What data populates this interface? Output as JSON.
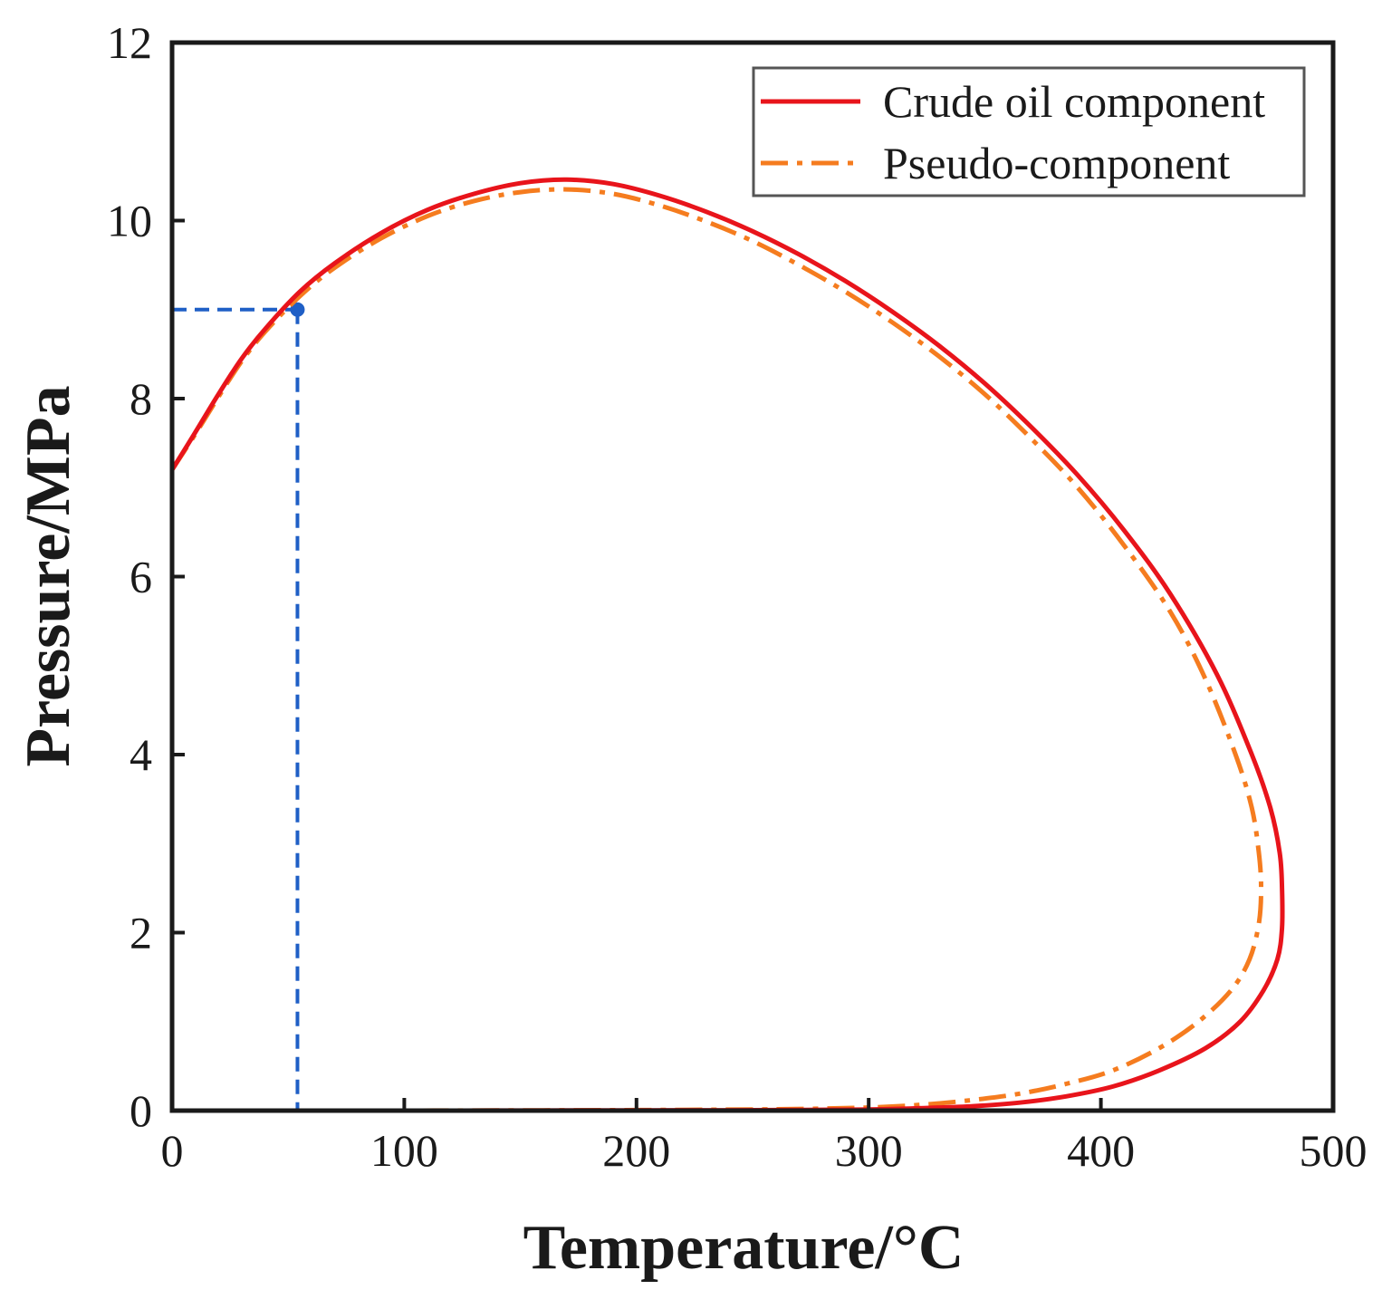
{
  "chart_data": {
    "type": "line",
    "title": "",
    "xlabel": "Temperature/°C",
    "ylabel": "Pressure/MPa",
    "xlim": [
      0,
      500
    ],
    "ylim": [
      0,
      12
    ],
    "grid": false,
    "legend_position": "top-right",
    "x_ticks": [
      "0",
      "100",
      "200",
      "300",
      "400",
      "500"
    ],
    "y_ticks": [
      "0",
      "2",
      "4",
      "6",
      "8",
      "10",
      "12"
    ],
    "colors": {
      "crude": "#e8141b",
      "pseudo": "#f57c1f",
      "reference": "#1f5fc6",
      "axis": "#1a1a1a",
      "legend_border": "#555555"
    },
    "series": [
      {
        "name": "Crude oil component",
        "style": "solid",
        "x": [
          0,
          10,
          20,
          30,
          40,
          55,
          70,
          90,
          110,
          130,
          150,
          170,
          190,
          210,
          230,
          250,
          270,
          290,
          310,
          330,
          350,
          370,
          390,
          410,
          430,
          450,
          465,
          473,
          477,
          478,
          478,
          476,
          470,
          460,
          445,
          425,
          405,
          385,
          365,
          345,
          325,
          305,
          285,
          260,
          230,
          200,
          170,
          140,
          120
        ],
        "y": [
          7.2,
          7.62,
          8.05,
          8.45,
          8.78,
          9.2,
          9.52,
          9.86,
          10.12,
          10.3,
          10.42,
          10.46,
          10.41,
          10.28,
          10.1,
          9.88,
          9.62,
          9.32,
          8.98,
          8.6,
          8.17,
          7.68,
          7.14,
          6.52,
          5.8,
          4.9,
          4.0,
          3.4,
          2.9,
          2.5,
          2.05,
          1.7,
          1.35,
          1.0,
          0.7,
          0.45,
          0.27,
          0.16,
          0.09,
          0.05,
          0.03,
          0.015,
          0.01,
          0.006,
          0.004,
          0.003,
          0.002,
          0.001,
          0.0
        ]
      },
      {
        "name": "Pseudo-component",
        "style": "dash-dot",
        "x": [
          0,
          10,
          20,
          30,
          40,
          55,
          70,
          90,
          110,
          130,
          150,
          170,
          190,
          210,
          230,
          250,
          270,
          290,
          310,
          330,
          350,
          370,
          390,
          410,
          430,
          445,
          458,
          465,
          468,
          469,
          468,
          464,
          456,
          442,
          425,
          405,
          385,
          365,
          345,
          325,
          305,
          285,
          260,
          230,
          200,
          170,
          140,
          120,
          100
        ],
        "y": [
          7.2,
          7.6,
          8.02,
          8.42,
          8.75,
          9.15,
          9.47,
          9.8,
          10.05,
          10.22,
          10.32,
          10.35,
          10.3,
          10.17,
          9.99,
          9.77,
          9.5,
          9.2,
          8.86,
          8.48,
          8.05,
          7.55,
          7.0,
          6.35,
          5.6,
          4.85,
          4.0,
          3.4,
          2.9,
          2.5,
          2.1,
          1.7,
          1.35,
          1.0,
          0.7,
          0.45,
          0.3,
          0.19,
          0.12,
          0.07,
          0.04,
          0.025,
          0.015,
          0.01,
          0.006,
          0.004,
          0.002,
          0.001,
          0.0
        ]
      }
    ],
    "reference_point": {
      "x": 54,
      "y": 9.0
    }
  }
}
